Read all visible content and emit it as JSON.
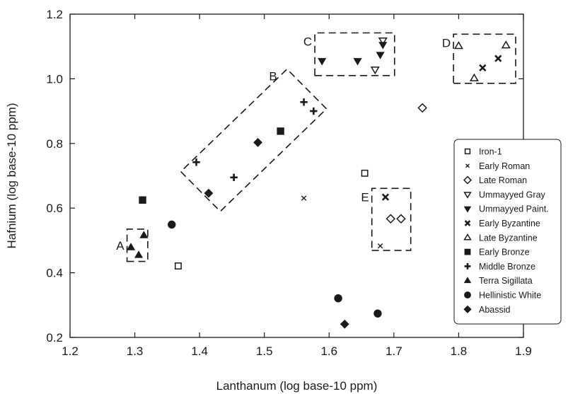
{
  "chart_data": {
    "type": "scatter",
    "title": "",
    "xlabel": "Lanthanum (log base-10 ppm)",
    "ylabel": "Hafnium (log base-10 ppm)",
    "xlim": [
      1.2,
      1.9
    ],
    "ylim": [
      0.2,
      1.2
    ],
    "xticks": [
      "1.2",
      "1.3",
      "1.4",
      "1.5",
      "1.6",
      "1.7",
      "1.8",
      "1.9"
    ],
    "yticks": [
      "0.2",
      "0.4",
      "0.6",
      "0.8",
      "1.0",
      "1.2"
    ],
    "grid": false,
    "legend_position": "right",
    "series": [
      {
        "name": "Iron-1",
        "marker": "square-open",
        "points": [
          [
            1.367,
            0.421
          ],
          [
            1.655,
            0.708
          ]
        ]
      },
      {
        "name": "Early Roman",
        "marker": "x",
        "points": [
          [
            1.561,
            0.631
          ],
          [
            1.679,
            0.483
          ]
        ]
      },
      {
        "name": "Late Roman",
        "marker": "diamond-open",
        "points": [
          [
            1.744,
            0.91
          ],
          [
            1.695,
            0.567
          ],
          [
            1.711,
            0.567
          ]
        ]
      },
      {
        "name": "Ummayyed Gray",
        "marker": "triangle-down-open",
        "points": [
          [
            1.671,
            1.028
          ],
          [
            1.683,
            1.118
          ]
        ]
      },
      {
        "name": "Ummayyed Paint.",
        "marker": "triangle-down-filled",
        "points": [
          [
            1.589,
            1.055
          ],
          [
            1.644,
            1.055
          ],
          [
            1.679,
            1.074
          ],
          [
            1.683,
            1.105
          ]
        ]
      },
      {
        "name": "Early Byzantine",
        "marker": "x-bold",
        "points": [
          [
            1.837,
            1.034
          ],
          [
            1.861,
            1.063
          ],
          [
            1.687,
            0.634
          ]
        ]
      },
      {
        "name": "Late Byzantine",
        "marker": "triangle-up-open",
        "points": [
          [
            1.8,
            1.102
          ],
          [
            1.824,
            1.002
          ],
          [
            1.873,
            1.104
          ]
        ]
      },
      {
        "name": "Early Bronze",
        "marker": "square-filled",
        "points": [
          [
            1.312,
            0.625
          ],
          [
            1.525,
            0.838
          ]
        ]
      },
      {
        "name": "Middle Bronze",
        "marker": "plus",
        "points": [
          [
            1.395,
            0.742
          ],
          [
            1.453,
            0.695
          ],
          [
            1.561,
            0.928
          ],
          [
            1.576,
            0.9
          ]
        ]
      },
      {
        "name": "Terra Sigillata",
        "marker": "triangle-up-filled",
        "points": [
          [
            1.294,
            0.479
          ],
          [
            1.306,
            0.455
          ],
          [
            1.314,
            0.516
          ]
        ]
      },
      {
        "name": "Hellinistic White",
        "marker": "circle-filled",
        "points": [
          [
            1.357,
            0.549
          ],
          [
            1.614,
            0.321
          ],
          [
            1.675,
            0.274
          ]
        ]
      },
      {
        "name": "Abassid",
        "marker": "diamond-filled",
        "points": [
          [
            1.414,
            0.646
          ],
          [
            1.49,
            0.803
          ],
          [
            1.624,
            0.241
          ]
        ]
      }
    ],
    "annotations": [
      {
        "label": "A",
        "box": [
          [
            1.288,
            0.435
          ],
          [
            1.32,
            0.435
          ],
          [
            1.32,
            0.535
          ],
          [
            1.288,
            0.535
          ]
        ]
      },
      {
        "label": "B",
        "box": [
          [
            1.371,
            0.713
          ],
          [
            1.432,
            0.59
          ],
          [
            1.596,
            0.907
          ],
          [
            1.535,
            1.03
          ]
        ]
      },
      {
        "label": "C",
        "box": [
          [
            1.578,
            1.01
          ],
          [
            1.701,
            1.01
          ],
          [
            1.701,
            1.142
          ],
          [
            1.578,
            1.142
          ]
        ]
      },
      {
        "label": "D",
        "box": [
          [
            1.792,
            0.986
          ],
          [
            1.888,
            0.986
          ],
          [
            1.888,
            1.138
          ],
          [
            1.792,
            1.138
          ]
        ]
      },
      {
        "label": "E",
        "box": [
          [
            1.666,
            0.469
          ],
          [
            1.726,
            0.469
          ],
          [
            1.726,
            0.661
          ],
          [
            1.666,
            0.661
          ]
        ]
      }
    ]
  }
}
